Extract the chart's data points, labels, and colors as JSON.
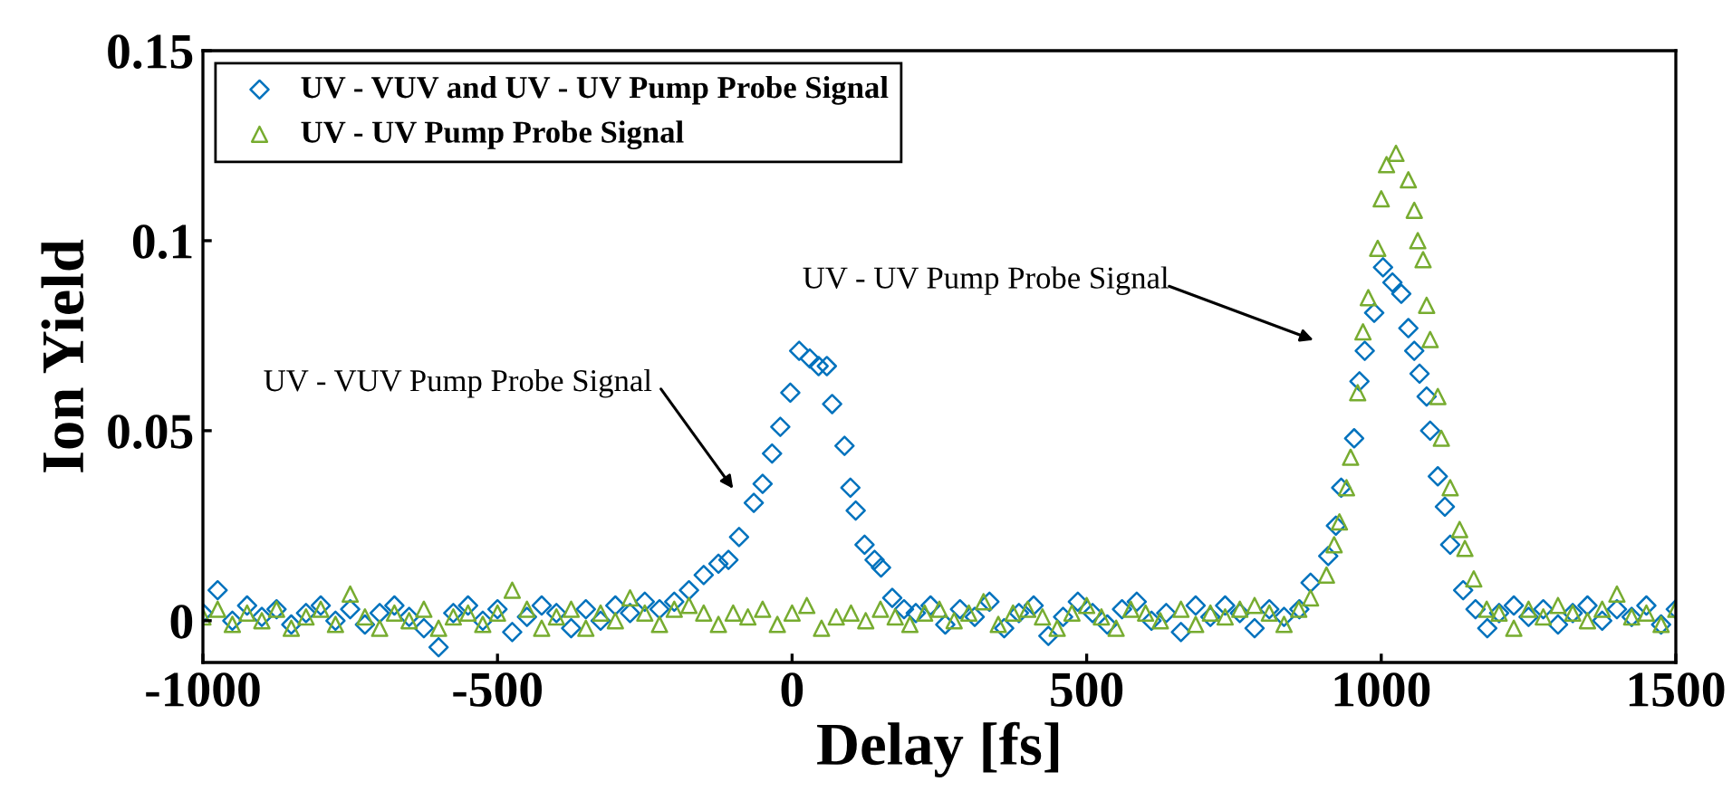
{
  "chart_data": {
    "type": "scatter",
    "xlabel": "Delay [fs]",
    "ylabel": "Ion Yield",
    "xlim": [
      -1000,
      1500
    ],
    "xticks": [
      -1000,
      -500,
      0,
      500,
      1000,
      1500
    ],
    "ylim": [
      -0.011,
      0.15
    ],
    "yticks": [
      0,
      0.05,
      0.1,
      0.15
    ],
    "grid": false,
    "legend": "top left",
    "series": [
      {
        "name": "UV - VUV and UV - UV Pump Probe Signal",
        "color": "#0072bd",
        "marker": "diamond",
        "x": [
          -1000,
          -975,
          -950,
          -925,
          -900,
          -875,
          -850,
          -825,
          -800,
          -775,
          -750,
          -725,
          -700,
          -675,
          -650,
          -625,
          -600,
          -575,
          -550,
          -525,
          -500,
          -475,
          -450,
          -425,
          -400,
          -375,
          -350,
          -325,
          -300,
          -275,
          -250,
          -225,
          -200,
          -175,
          -150,
          -125,
          -108,
          -90,
          -65,
          -50,
          -34,
          -20,
          -3,
          12,
          30,
          45,
          59,
          68,
          89,
          99,
          108,
          123,
          140,
          151,
          170,
          190,
          210,
          235,
          260,
          285,
          310,
          335,
          360,
          385,
          410,
          435,
          460,
          485,
          510,
          535,
          560,
          585,
          610,
          635,
          660,
          685,
          710,
          735,
          760,
          785,
          810,
          835,
          861,
          880,
          910,
          923,
          932,
          954,
          963,
          972,
          988,
          1003,
          1019,
          1034,
          1046,
          1056,
          1065,
          1077,
          1083,
          1096,
          1108,
          1117,
          1139,
          1160,
          1180,
          1200,
          1225,
          1250,
          1275,
          1300,
          1325,
          1350,
          1375,
          1400,
          1425,
          1450,
          1475,
          1500
        ],
        "values": [
          0.002,
          0.008,
          0.0,
          0.004,
          0.001,
          0.003,
          -0.001,
          0.002,
          0.004,
          0.0,
          0.003,
          -0.001,
          0.002,
          0.004,
          0.001,
          -0.002,
          -0.007,
          0.002,
          0.004,
          0.0,
          0.003,
          -0.003,
          0.001,
          0.004,
          0.002,
          -0.002,
          0.003,
          0.0,
          0.004,
          0.002,
          0.005,
          0.003,
          0.005,
          0.008,
          0.012,
          0.015,
          0.016,
          0.022,
          0.031,
          0.036,
          0.044,
          0.051,
          0.06,
          0.071,
          0.069,
          0.067,
          0.067,
          0.057,
          0.046,
          0.035,
          0.029,
          0.02,
          0.016,
          0.014,
          0.006,
          0.003,
          0.002,
          0.004,
          -0.001,
          0.003,
          0.001,
          0.005,
          -0.002,
          0.002,
          0.004,
          -0.004,
          0.001,
          0.005,
          0.002,
          -0.001,
          0.003,
          0.005,
          0.0,
          0.002,
          -0.003,
          0.004,
          0.001,
          0.004,
          0.002,
          -0.002,
          0.003,
          0.001,
          0.003,
          0.01,
          0.017,
          0.025,
          0.035,
          0.048,
          0.063,
          0.071,
          0.081,
          0.093,
          0.089,
          0.086,
          0.077,
          0.071,
          0.065,
          0.059,
          0.05,
          0.038,
          0.03,
          0.02,
          0.008,
          0.003,
          -0.002,
          0.002,
          0.004,
          0.001,
          0.003,
          -0.001,
          0.002,
          0.004,
          0.0,
          0.003,
          0.001,
          0.004,
          -0.001,
          0.003
        ]
      },
      {
        "name": "UV - UV Pump Probe Signal",
        "color": "#77ac30",
        "marker": "triangle",
        "x": [
          -1000,
          -975,
          -950,
          -925,
          -900,
          -875,
          -850,
          -825,
          -800,
          -775,
          -750,
          -725,
          -700,
          -675,
          -650,
          -625,
          -600,
          -575,
          -550,
          -525,
          -500,
          -475,
          -450,
          -425,
          -400,
          -375,
          -350,
          -325,
          -300,
          -275,
          -250,
          -225,
          -200,
          -175,
          -150,
          -125,
          -100,
          -75,
          -50,
          -25,
          0,
          25,
          50,
          75,
          100,
          125,
          150,
          175,
          200,
          225,
          250,
          275,
          300,
          325,
          350,
          375,
          400,
          425,
          450,
          475,
          500,
          525,
          550,
          575,
          600,
          625,
          660,
          685,
          710,
          735,
          760,
          785,
          810,
          835,
          860,
          880,
          907,
          920,
          929,
          941,
          948,
          960,
          969,
          978,
          994,
          1000,
          1009,
          1025,
          1046,
          1056,
          1062,
          1071,
          1077,
          1083,
          1096,
          1102,
          1117,
          1133,
          1142,
          1157,
          1179,
          1200,
          1225,
          1250,
          1275,
          1300,
          1325,
          1350,
          1375,
          1400,
          1425,
          1450,
          1475,
          1500
        ],
        "values": [
          0.001,
          0.003,
          -0.001,
          0.002,
          0.0,
          0.003,
          -0.002,
          0.001,
          0.003,
          -0.001,
          0.007,
          0.001,
          -0.002,
          0.002,
          0.0,
          0.003,
          -0.002,
          0.001,
          0.002,
          -0.001,
          0.002,
          0.008,
          0.003,
          -0.002,
          0.001,
          0.003,
          -0.002,
          0.002,
          0.0,
          0.006,
          0.002,
          -0.001,
          0.003,
          0.004,
          0.002,
          -0.001,
          0.002,
          0.001,
          0.003,
          -0.001,
          0.002,
          0.004,
          -0.002,
          0.001,
          0.002,
          0.0,
          0.003,
          0.001,
          -0.001,
          0.002,
          0.003,
          0.0,
          0.002,
          0.005,
          -0.001,
          0.002,
          0.003,
          0.001,
          -0.002,
          0.002,
          0.004,
          0.001,
          -0.002,
          0.003,
          0.002,
          0.0,
          0.003,
          -0.001,
          0.002,
          0.001,
          0.003,
          0.004,
          0.002,
          -0.001,
          0.003,
          0.006,
          0.012,
          0.02,
          0.026,
          0.035,
          0.043,
          0.06,
          0.076,
          0.085,
          0.098,
          0.111,
          0.12,
          0.123,
          0.116,
          0.108,
          0.1,
          0.095,
          0.083,
          0.074,
          0.059,
          0.048,
          0.035,
          0.024,
          0.019,
          0.011,
          0.003,
          0.002,
          -0.002,
          0.003,
          0.001,
          0.004,
          0.002,
          0.0,
          0.003,
          0.007,
          0.001,
          0.002,
          -0.001,
          0.003
        ]
      }
    ],
    "annotations": [
      "UV - VUV Pump Probe Signal",
      "UV - UV Pump Probe Signal"
    ]
  }
}
